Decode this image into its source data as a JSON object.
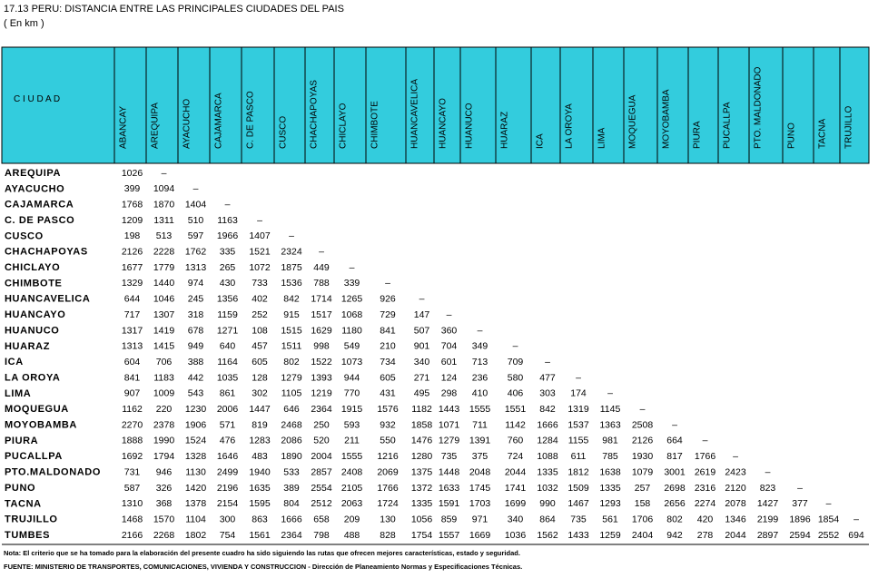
{
  "header": {
    "title": "17.13  PERU: DISTANCIA ENTRE LAS PRINCIPALES CIUDADES DEL PAIS",
    "subtitle": "( En km )"
  },
  "table": {
    "corner": "C I U D A D",
    "columns": [
      "ABANCAY",
      "AREQUIPA",
      "AYACUCHO",
      "CAJAMARCA",
      "C. DE PASCO",
      "CUSCO",
      "CHACHAPOYAS",
      "CHICLAYO",
      "CHIMBOTE",
      "HUANCAVELICA",
      "HUANCAYO",
      "HUANUCO",
      "HUARAZ",
      "ICA",
      "LA OROYA",
      "LIMA",
      "MOQUEGUA",
      "MOYOBAMBA",
      "PIURA",
      "PUCALLPA",
      "PTO. MALDONADO",
      "PUNO",
      "TACNA",
      "TRUJILLO"
    ],
    "rows": [
      {
        "label": "AREQUIPA",
        "values": [
          1026,
          "–"
        ]
      },
      {
        "label": "AYACUCHO",
        "values": [
          399,
          1094,
          "–"
        ]
      },
      {
        "label": "CAJAMARCA",
        "values": [
          1768,
          1870,
          1404,
          "–"
        ]
      },
      {
        "label": "C. DE PASCO",
        "values": [
          1209,
          1311,
          510,
          1163,
          "–"
        ]
      },
      {
        "label": "CUSCO",
        "values": [
          198,
          513,
          597,
          1966,
          1407,
          "–"
        ]
      },
      {
        "label": "CHACHAPOYAS",
        "values": [
          2126,
          2228,
          1762,
          335,
          1521,
          2324,
          "–"
        ]
      },
      {
        "label": "CHICLAYO",
        "values": [
          1677,
          1779,
          1313,
          265,
          1072,
          1875,
          449,
          "–"
        ]
      },
      {
        "label": "CHIMBOTE",
        "values": [
          1329,
          1440,
          974,
          430,
          733,
          1536,
          788,
          339,
          "–"
        ]
      },
      {
        "label": "HUANCAVELICA",
        "values": [
          644,
          1046,
          245,
          1356,
          402,
          842,
          1714,
          1265,
          926,
          "–"
        ]
      },
      {
        "label": "HUANCAYO",
        "values": [
          717,
          1307,
          318,
          1159,
          252,
          915,
          1517,
          1068,
          729,
          147,
          "–"
        ]
      },
      {
        "label": "HUANUCO",
        "values": [
          1317,
          1419,
          678,
          1271,
          108,
          1515,
          1629,
          1180,
          841,
          507,
          360,
          "–"
        ]
      },
      {
        "label": "HUARAZ",
        "values": [
          1313,
          1415,
          949,
          640,
          457,
          1511,
          998,
          549,
          210,
          901,
          704,
          349,
          "–"
        ]
      },
      {
        "label": "ICA",
        "values": [
          604,
          706,
          388,
          1164,
          605,
          802,
          1522,
          1073,
          734,
          340,
          601,
          713,
          709,
          "–"
        ]
      },
      {
        "label": "LA OROYA",
        "values": [
          841,
          1183,
          442,
          1035,
          128,
          1279,
          1393,
          944,
          605,
          271,
          124,
          236,
          580,
          477,
          "–"
        ]
      },
      {
        "label": "LIMA",
        "values": [
          907,
          1009,
          543,
          861,
          302,
          1105,
          1219,
          770,
          431,
          495,
          298,
          410,
          406,
          303,
          174,
          "–"
        ]
      },
      {
        "label": "MOQUEGUA",
        "values": [
          1162,
          220,
          1230,
          2006,
          1447,
          646,
          2364,
          1915,
          1576,
          1182,
          1443,
          1555,
          1551,
          842,
          1319,
          1145,
          "–"
        ]
      },
      {
        "label": "MOYOBAMBA",
        "values": [
          2270,
          2378,
          1906,
          571,
          819,
          2468,
          250,
          593,
          932,
          1858,
          1071,
          711,
          1142,
          1666,
          1537,
          1363,
          2508,
          "–"
        ]
      },
      {
        "label": "PIURA",
        "values": [
          1888,
          1990,
          1524,
          476,
          1283,
          2086,
          520,
          211,
          550,
          1476,
          1279,
          1391,
          760,
          1284,
          1155,
          981,
          2126,
          664,
          "–"
        ]
      },
      {
        "label": "PUCALLPA",
        "values": [
          1692,
          1794,
          1328,
          1646,
          483,
          1890,
          2004,
          1555,
          1216,
          1280,
          735,
          375,
          724,
          1088,
          611,
          785,
          1930,
          817,
          1766,
          "–"
        ]
      },
      {
        "label": "PTO.MALDONADO",
        "values": [
          731,
          946,
          1130,
          2499,
          1940,
          533,
          2857,
          2408,
          2069,
          1375,
          1448,
          2048,
          2044,
          1335,
          1812,
          1638,
          1079,
          3001,
          2619,
          2423,
          "–"
        ]
      },
      {
        "label": "PUNO",
        "values": [
          587,
          326,
          1420,
          2196,
          1635,
          389,
          2554,
          2105,
          1766,
          1372,
          1633,
          1745,
          1741,
          1032,
          1509,
          1335,
          257,
          2698,
          2316,
          2120,
          823,
          "–"
        ]
      },
      {
        "label": "TACNA",
        "values": [
          1310,
          368,
          1378,
          2154,
          1595,
          804,
          2512,
          2063,
          1724,
          1335,
          1591,
          1703,
          1699,
          990,
          1467,
          1293,
          158,
          2656,
          2274,
          2078,
          1427,
          377,
          "–"
        ]
      },
      {
        "label": "TRUJILLO",
        "values": [
          1468,
          1570,
          1104,
          300,
          863,
          1666,
          658,
          209,
          130,
          1056,
          859,
          971,
          340,
          864,
          735,
          561,
          1706,
          802,
          420,
          1346,
          2199,
          1896,
          1854,
          "–"
        ]
      },
      {
        "label": "TUMBES",
        "values": [
          2166,
          2268,
          1802,
          754,
          1561,
          2364,
          798,
          488,
          828,
          1754,
          1557,
          1669,
          1036,
          1562,
          1433,
          1259,
          2404,
          942,
          278,
          2044,
          2897,
          2594,
          2552,
          694
        ]
      }
    ]
  },
  "footer": {
    "note": "Nota: El criterio que se ha tomado para la elaboración del presente cuadro ha sido siguiendo las rutas que ofrecen mejores características, estado y seguridad.",
    "source": "FUENTE: MINISTERIO DE TRANSPORTES, COMUNICACIONES, VIVIENDA Y CONSTRUCCION - Dirección de Planeamiento Normas y Especificaciones Técnicas."
  }
}
